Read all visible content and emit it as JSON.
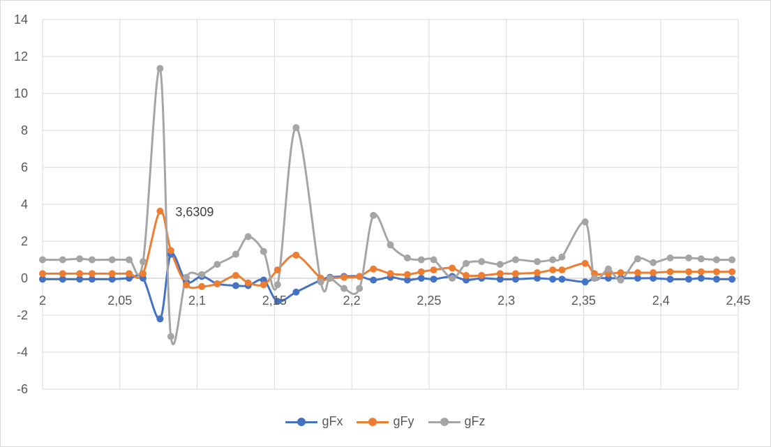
{
  "chart_data": {
    "type": "scatter",
    "title": "",
    "xlabel": "",
    "ylabel": "",
    "xlim": [
      2,
      2.45
    ],
    "ylim": [
      -6,
      14
    ],
    "x_ticks": [
      "2",
      "2,05",
      "2,1",
      "2,15",
      "2,2",
      "2,25",
      "2,3",
      "2,35",
      "2,4",
      "2,45"
    ],
    "y_ticks": [
      "-6",
      "-4",
      "-2",
      "0",
      "2",
      "4",
      "6",
      "8",
      "10",
      "12",
      "14"
    ],
    "grid": true,
    "legend_position": "bottom",
    "annotation": {
      "text": "3,6309",
      "series": "gFy",
      "x": 2.076,
      "y": 3.6309
    },
    "series": [
      {
        "name": "gFx",
        "color": "#4472C4",
        "points": [
          [
            2.0,
            -0.05
          ],
          [
            2.013,
            -0.05
          ],
          [
            2.024,
            -0.05
          ],
          [
            2.032,
            -0.05
          ],
          [
            2.045,
            -0.05
          ],
          [
            2.056,
            0.0
          ],
          [
            2.065,
            0.0
          ],
          [
            2.076,
            -2.2
          ],
          [
            2.083,
            1.3
          ],
          [
            2.093,
            -0.2
          ],
          [
            2.103,
            0.1
          ],
          [
            2.113,
            -0.3
          ],
          [
            2.125,
            -0.4
          ],
          [
            2.133,
            -0.4
          ],
          [
            2.143,
            -0.1
          ],
          [
            2.152,
            -1.25
          ],
          [
            2.164,
            -0.75
          ],
          [
            2.18,
            -0.1
          ],
          [
            2.186,
            0.05
          ],
          [
            2.195,
            0.1
          ],
          [
            2.205,
            0.1
          ],
          [
            2.214,
            -0.1
          ],
          [
            2.225,
            0.05
          ],
          [
            2.236,
            -0.1
          ],
          [
            2.245,
            0.0
          ],
          [
            2.253,
            -0.05
          ],
          [
            2.265,
            0.1
          ],
          [
            2.274,
            -0.1
          ],
          [
            2.284,
            0.0
          ],
          [
            2.296,
            -0.05
          ],
          [
            2.306,
            -0.05
          ],
          [
            2.32,
            0.0
          ],
          [
            2.33,
            -0.05
          ],
          [
            2.336,
            -0.05
          ],
          [
            2.351,
            -0.2
          ],
          [
            2.357,
            0.0
          ],
          [
            2.366,
            0.0
          ],
          [
            2.374,
            0.0
          ],
          [
            2.385,
            0.0
          ],
          [
            2.395,
            0.0
          ],
          [
            2.406,
            -0.05
          ],
          [
            2.418,
            -0.05
          ],
          [
            2.426,
            0.0
          ],
          [
            2.436,
            -0.05
          ],
          [
            2.446,
            -0.05
          ]
        ]
      },
      {
        "name": "gFy",
        "color": "#ED7D31",
        "points": [
          [
            2.0,
            0.25
          ],
          [
            2.013,
            0.25
          ],
          [
            2.024,
            0.25
          ],
          [
            2.032,
            0.25
          ],
          [
            2.045,
            0.25
          ],
          [
            2.056,
            0.25
          ],
          [
            2.065,
            0.25
          ],
          [
            2.076,
            3.6309
          ],
          [
            2.083,
            1.5
          ],
          [
            2.093,
            -0.35
          ],
          [
            2.103,
            -0.45
          ],
          [
            2.113,
            -0.3
          ],
          [
            2.125,
            0.15
          ],
          [
            2.133,
            -0.25
          ],
          [
            2.143,
            -0.35
          ],
          [
            2.152,
            0.45
          ],
          [
            2.164,
            1.25
          ],
          [
            2.18,
            0.0
          ],
          [
            2.186,
            0.0
          ],
          [
            2.195,
            0.05
          ],
          [
            2.205,
            0.1
          ],
          [
            2.214,
            0.5
          ],
          [
            2.225,
            0.25
          ],
          [
            2.236,
            0.2
          ],
          [
            2.245,
            0.35
          ],
          [
            2.253,
            0.45
          ],
          [
            2.265,
            0.55
          ],
          [
            2.274,
            0.15
          ],
          [
            2.284,
            0.15
          ],
          [
            2.296,
            0.25
          ],
          [
            2.306,
            0.25
          ],
          [
            2.32,
            0.3
          ],
          [
            2.33,
            0.45
          ],
          [
            2.336,
            0.45
          ],
          [
            2.351,
            0.8
          ],
          [
            2.357,
            0.25
          ],
          [
            2.366,
            0.25
          ],
          [
            2.374,
            0.3
          ],
          [
            2.385,
            0.3
          ],
          [
            2.395,
            0.3
          ],
          [
            2.406,
            0.35
          ],
          [
            2.418,
            0.35
          ],
          [
            2.426,
            0.35
          ],
          [
            2.436,
            0.35
          ],
          [
            2.446,
            0.35
          ]
        ]
      },
      {
        "name": "gFz",
        "color": "#A5A5A5",
        "points": [
          [
            2.0,
            1.0
          ],
          [
            2.013,
            1.0
          ],
          [
            2.024,
            1.05
          ],
          [
            2.032,
            1.0
          ],
          [
            2.045,
            1.0
          ],
          [
            2.056,
            1.0
          ],
          [
            2.065,
            0.9
          ],
          [
            2.076,
            11.35
          ],
          [
            2.083,
            -3.15
          ],
          [
            2.093,
            0.05
          ],
          [
            2.103,
            0.2
          ],
          [
            2.113,
            0.75
          ],
          [
            2.125,
            1.3
          ],
          [
            2.133,
            2.25
          ],
          [
            2.143,
            1.45
          ],
          [
            2.152,
            -0.35
          ],
          [
            2.164,
            8.15
          ],
          [
            2.18,
            -0.2
          ],
          [
            2.186,
            0.0
          ],
          [
            2.195,
            -0.55
          ],
          [
            2.205,
            -0.55
          ],
          [
            2.214,
            3.4
          ],
          [
            2.225,
            1.8
          ],
          [
            2.236,
            1.1
          ],
          [
            2.245,
            1.0
          ],
          [
            2.253,
            1.0
          ],
          [
            2.265,
            0.0
          ],
          [
            2.274,
            0.8
          ],
          [
            2.284,
            0.9
          ],
          [
            2.296,
            0.75
          ],
          [
            2.306,
            1.0
          ],
          [
            2.32,
            0.9
          ],
          [
            2.33,
            1.0
          ],
          [
            2.336,
            1.15
          ],
          [
            2.351,
            3.05
          ],
          [
            2.357,
            0.0
          ],
          [
            2.366,
            0.5
          ],
          [
            2.374,
            -0.1
          ],
          [
            2.385,
            1.05
          ],
          [
            2.395,
            0.85
          ],
          [
            2.406,
            1.1
          ],
          [
            2.418,
            1.1
          ],
          [
            2.426,
            1.05
          ],
          [
            2.436,
            1.0
          ],
          [
            2.446,
            1.0
          ]
        ]
      }
    ]
  },
  "legend": [
    {
      "name": "gFx",
      "color": "#4472C4"
    },
    {
      "name": "gFy",
      "color": "#ED7D31"
    },
    {
      "name": "gFz",
      "color": "#A5A5A5"
    }
  ]
}
